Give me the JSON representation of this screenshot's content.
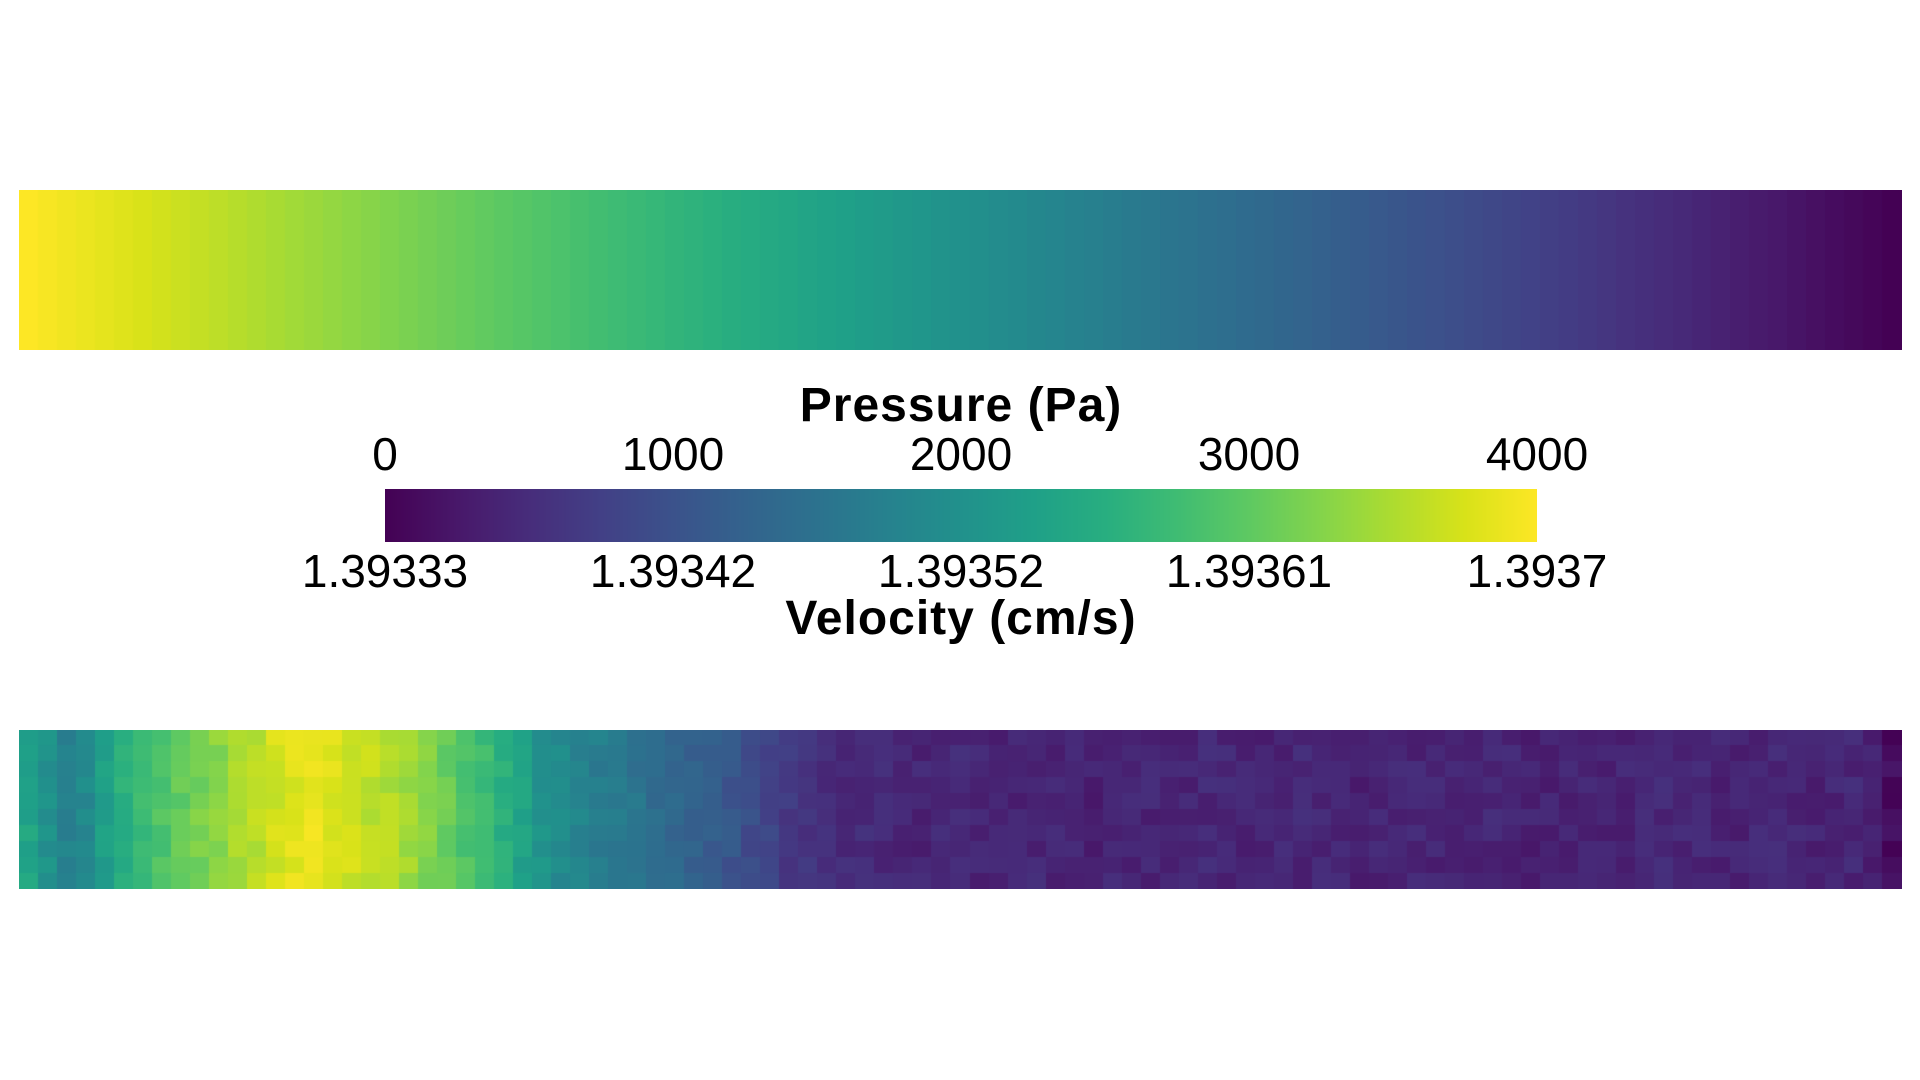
{
  "page": {
    "background_color": "#ffffff",
    "text_color": "#000000"
  },
  "legend": {
    "pressure_title": "Pressure (Pa)",
    "pressure_ticks": [
      "0",
      "1000",
      "2000",
      "3000",
      "4000"
    ],
    "velocity_ticks": [
      "1.39333",
      "1.39342",
      "1.39352",
      "1.39361",
      "1.3937"
    ],
    "velocity_title": "Velocity (cm/s)"
  },
  "colormap": {
    "name": "viridis",
    "stops": [
      [
        0.0,
        "#440154"
      ],
      [
        0.0625,
        "#48186a"
      ],
      [
        0.125,
        "#472d7b"
      ],
      [
        0.1875,
        "#424086"
      ],
      [
        0.25,
        "#3b528b"
      ],
      [
        0.3125,
        "#33638d"
      ],
      [
        0.375,
        "#2c728e"
      ],
      [
        0.4375,
        "#26828e"
      ],
      [
        0.5,
        "#21918c"
      ],
      [
        0.5625,
        "#1fa088"
      ],
      [
        0.625,
        "#28ae80"
      ],
      [
        0.6875,
        "#3fbc73"
      ],
      [
        0.75,
        "#5ec962"
      ],
      [
        0.8125,
        "#84d44b"
      ],
      [
        0.875,
        "#addc30"
      ],
      [
        0.9375,
        "#d8e219"
      ],
      [
        1.0,
        "#fde725"
      ]
    ]
  },
  "chart_data": [
    {
      "type": "heatmap",
      "name": "pressure_field",
      "title": "Pressure (Pa)",
      "colormap": "viridis",
      "vmin": 0,
      "vmax": 4000,
      "orientation": "horizontal-strip",
      "columns": 99,
      "rows": 1,
      "profile": "linear",
      "value_left": 4000,
      "value_right": 0
    },
    {
      "type": "heatmap",
      "name": "velocity_field",
      "title": "Velocity (cm/s)",
      "colormap": "viridis",
      "vmin": 1.39333,
      "vmax": 1.3937,
      "orientation": "horizontal-strip",
      "grid": {
        "cols": 99,
        "rows": 10
      },
      "cell_noise_amplitude": 0.03,
      "column_values_normalized": [
        0.58,
        0.5,
        0.44,
        0.47,
        0.56,
        0.63,
        0.67,
        0.72,
        0.76,
        0.79,
        0.82,
        0.86,
        0.89,
        0.93,
        0.95,
        0.97,
        0.94,
        0.92,
        0.9,
        0.88,
        0.85,
        0.81,
        0.77,
        0.72,
        0.68,
        0.63,
        0.57,
        0.51,
        0.47,
        0.44,
        0.42,
        0.4,
        0.38,
        0.36,
        0.33,
        0.31,
        0.28,
        0.26,
        0.23,
        0.2,
        0.17,
        0.14,
        0.13,
        0.12,
        0.115,
        0.11,
        0.105,
        0.1,
        0.105,
        0.11,
        0.1,
        0.095,
        0.1,
        0.105,
        0.1,
        0.095,
        0.09,
        0.1,
        0.105,
        0.1,
        0.095,
        0.1,
        0.11,
        0.105,
        0.1,
        0.095,
        0.1,
        0.105,
        0.1,
        0.095,
        0.09,
        0.1,
        0.11,
        0.105,
        0.1,
        0.095,
        0.1,
        0.105,
        0.1,
        0.09,
        0.095,
        0.1,
        0.105,
        0.1,
        0.095,
        0.1,
        0.11,
        0.105,
        0.1,
        0.095,
        0.09,
        0.1,
        0.105,
        0.1,
        0.095,
        0.1,
        0.105,
        0.09,
        0.03
      ]
    },
    {
      "type": "colorbar",
      "name": "shared_colorbar",
      "colormap": "viridis",
      "top_scale": {
        "title": "Pressure (Pa)",
        "ticks": [
          0,
          1000,
          2000,
          3000,
          4000
        ]
      },
      "bottom_scale": {
        "title": "Velocity (cm/s)",
        "ticks": [
          1.39333,
          1.39342,
          1.39352,
          1.39361,
          1.3937
        ]
      }
    }
  ]
}
